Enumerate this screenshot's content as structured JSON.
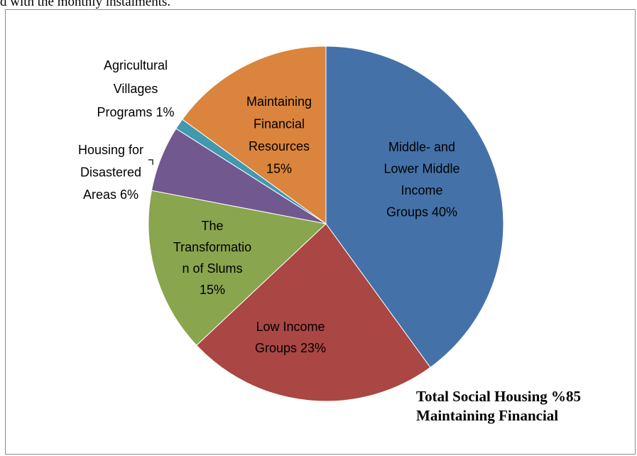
{
  "page": {
    "top_text": "d with the monthly instalments."
  },
  "colors": {
    "middle": "#4472A8",
    "low": "#AA4643",
    "slums": "#89A54E",
    "disaster": "#71588F",
    "agri": "#4198AF",
    "maintain": "#DB843D",
    "leader": "#000000"
  },
  "chart_data": {
    "type": "pie",
    "slices": [
      {
        "key": "middle",
        "label_lines": [
          "Middle- and",
          "Lower Middle",
          "Income",
          "Groups 40%"
        ],
        "value": 40
      },
      {
        "key": "low",
        "label_lines": [
          "Low Income",
          "Groups 23%"
        ],
        "value": 23
      },
      {
        "key": "slums",
        "label_lines": [
          "The",
          "Transformatio",
          "n of Slums",
          "15%"
        ],
        "value": 15
      },
      {
        "key": "disaster",
        "label_lines": [
          "Housing for",
          "Disastered",
          "Areas 6%"
        ],
        "value": 6
      },
      {
        "key": "agri",
        "label_lines": [
          "Agricultural",
          "Villages",
          "Programs 1%"
        ],
        "value": 1
      },
      {
        "key": "maintain",
        "label_lines": [
          "Maintaining",
          "Financial",
          "Resources",
          "15%"
        ],
        "value": 15
      }
    ],
    "annotation_lines": [
      "Total Social Housing %85",
      "Maintaining Financial"
    ]
  }
}
